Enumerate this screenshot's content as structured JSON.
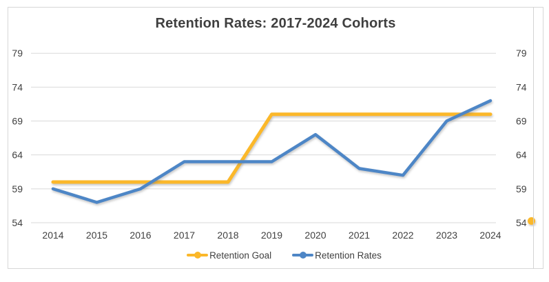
{
  "chart_data": {
    "type": "line",
    "title": "Retention Rates: 2017-2024 Cohorts",
    "categories": [
      "2014",
      "2015",
      "2016",
      "2017",
      "2018",
      "2019",
      "2020",
      "2021",
      "2022",
      "2023",
      "2024"
    ],
    "series": [
      {
        "name": "Retention Goal",
        "color": "#FBB82A",
        "values": [
          60,
          60,
          60,
          60,
          60,
          70,
          70,
          70,
          70,
          70,
          70
        ]
      },
      {
        "name": "Retention Rates",
        "color": "#4E86C6",
        "values": [
          59,
          57,
          59,
          63,
          63,
          63,
          67,
          62,
          61,
          69,
          72
        ]
      }
    ],
    "y_ticks": [
      54,
      59,
      64,
      69,
      74,
      79
    ],
    "ylim": [
      54,
      79
    ],
    "y_axis_sides": [
      "left",
      "right"
    ],
    "grid": true,
    "legend_position": "bottom",
    "clipped_edge_point": {
      "series": "Retention Goal",
      "value": 54
    }
  },
  "colors": {
    "goal_line": "#FBB82A",
    "rates_line": "#4E86C6",
    "gridline": "#D9D9D9",
    "frame_border": "#D7D7D7",
    "text": "#404040",
    "title_text": "#3F3F3F"
  }
}
